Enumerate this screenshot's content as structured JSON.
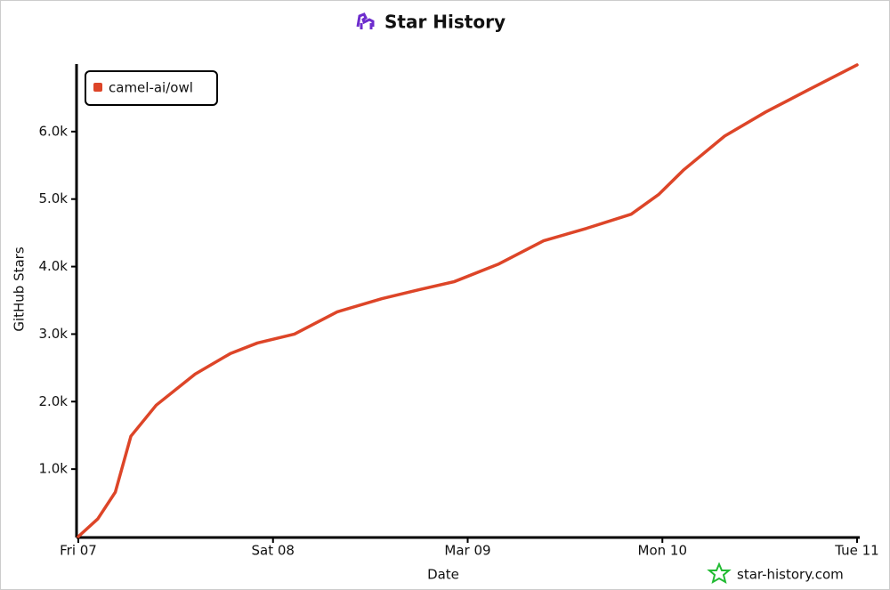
{
  "chart_data": {
    "type": "line",
    "title": "Star History",
    "x_label": "Date",
    "y_label": "GitHub Stars",
    "series": [
      {
        "name": "camel-ai/owl",
        "color": "#dd4528",
        "x": [
          7.0,
          7.1,
          7.19,
          7.27,
          7.4,
          7.6,
          7.78,
          7.92,
          8.11,
          8.33,
          8.56,
          8.75,
          8.93,
          9.16,
          9.39,
          9.61,
          9.84,
          9.98,
          10.11,
          10.32,
          10.53,
          10.75,
          11.0
        ],
        "values": [
          0,
          263,
          658,
          1487,
          1947,
          2408,
          2710,
          2868,
          3000,
          3329,
          3526,
          3658,
          3776,
          4039,
          4382,
          4566,
          4776,
          5066,
          5434,
          5934,
          6289,
          6618,
          6987
        ]
      }
    ],
    "xlim": [
      7,
      11.0
    ],
    "xticks": [
      {
        "value": 7,
        "label": "Fri 07"
      },
      {
        "value": 8,
        "label": "Sat 08"
      },
      {
        "value": 9,
        "label": "Mar 09"
      },
      {
        "value": 10,
        "label": "Mon 10"
      },
      {
        "value": 11,
        "label": "Tue 11"
      }
    ],
    "ylim": [
      0,
      7000
    ],
    "yticks": [
      {
        "value": 1000,
        "label": "1.0k"
      },
      {
        "value": 2000,
        "label": "2.0k"
      },
      {
        "value": 3000,
        "label": "3.0k"
      },
      {
        "value": 4000,
        "label": "4.0k"
      },
      {
        "value": 5000,
        "label": "5.0k"
      },
      {
        "value": 6000,
        "label": "6.0k"
      }
    ],
    "legend": "top-left",
    "watermark": "star-history.com"
  }
}
